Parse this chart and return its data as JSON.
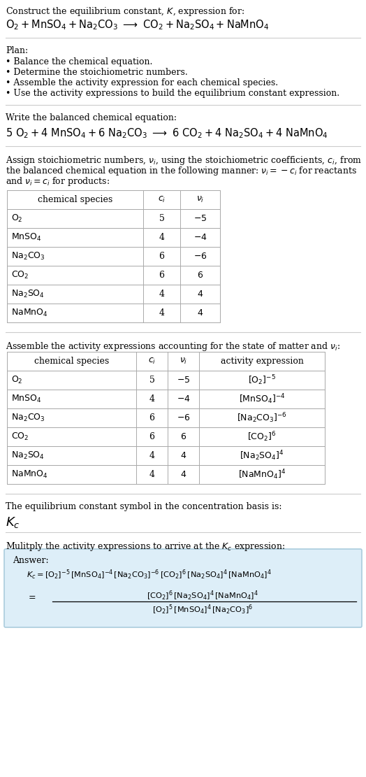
{
  "bg_color": "#ffffff",
  "text_color": "#000000",
  "table_border": "#aaaaaa",
  "plan_items": [
    "• Balance the chemical equation.",
    "• Determine the stoichiometric numbers.",
    "• Assemble the activity expression for each chemical species.",
    "• Use the activity expressions to build the equilibrium constant expression."
  ],
  "table1_rows": [
    [
      "$\\mathrm{O_2}$",
      "5",
      "$-5$"
    ],
    [
      "$\\mathrm{MnSO_4}$",
      "4",
      "$-4$"
    ],
    [
      "$\\mathrm{Na_2CO_3}$",
      "6",
      "$-6$"
    ],
    [
      "$\\mathrm{CO_2}$",
      "6",
      "$6$"
    ],
    [
      "$\\mathrm{Na_2SO_4}$",
      "4",
      "$4$"
    ],
    [
      "$\\mathrm{NaMnO_4}$",
      "4",
      "$4$"
    ]
  ],
  "table2_rows": [
    [
      "$\\mathrm{O_2}$",
      "5",
      "$-5$",
      "$[\\mathrm{O_2}]^{-5}$"
    ],
    [
      "$\\mathrm{MnSO_4}$",
      "4",
      "$-4$",
      "$[\\mathrm{MnSO_4}]^{-4}$"
    ],
    [
      "$\\mathrm{Na_2CO_3}$",
      "6",
      "$-6$",
      "$[\\mathrm{Na_2CO_3}]^{-6}$"
    ],
    [
      "$\\mathrm{CO_2}$",
      "6",
      "$6$",
      "$[\\mathrm{CO_2}]^{6}$"
    ],
    [
      "$\\mathrm{Na_2SO_4}$",
      "4",
      "$4$",
      "$[\\mathrm{Na_2SO_4}]^{4}$"
    ],
    [
      "$\\mathrm{NaMnO_4}$",
      "4",
      "$4$",
      "$[\\mathrm{NaMnO_4}]^{4}$"
    ]
  ],
  "answer_box_color": "#ddeef8",
  "answer_box_edge": "#aaccdd",
  "fs": 9.0,
  "fs_eq": 10.5
}
